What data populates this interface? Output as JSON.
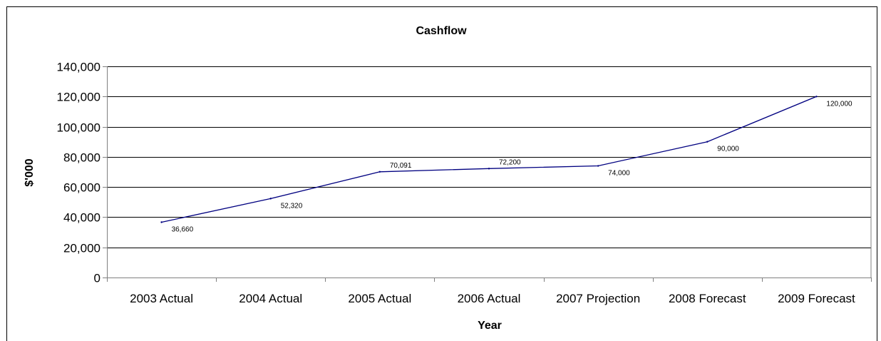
{
  "chart_data": {
    "type": "line",
    "title": "Cashflow",
    "xlabel": "Year",
    "ylabel": "$'000",
    "categories": [
      "2003 Actual",
      "2004 Actual",
      "2005 Actual",
      "2006 Actual",
      "2007 Projection",
      "2008 Forecast",
      "2009 Forecast"
    ],
    "series": [
      {
        "values": [
          36660,
          52320,
          70091,
          72200,
          74000,
          90000,
          120000
        ]
      }
    ],
    "data_labels": [
      "36,660",
      "52,320",
      "70,091",
      "72,200",
      "74,000",
      "90,000",
      "120,000"
    ],
    "ylim": [
      0,
      140000
    ],
    "yticks": [
      0,
      20000,
      40000,
      60000,
      80000,
      100000,
      120000,
      140000
    ],
    "ytick_labels": [
      "0",
      "20,000",
      "40,000",
      "60,000",
      "80,000",
      "100,000",
      "120,000",
      "140,000"
    ],
    "grid": true,
    "legend": "none",
    "colors": {
      "line": "#000080",
      "grid": "#000000",
      "axis": "#808080",
      "text": "#000000"
    }
  }
}
